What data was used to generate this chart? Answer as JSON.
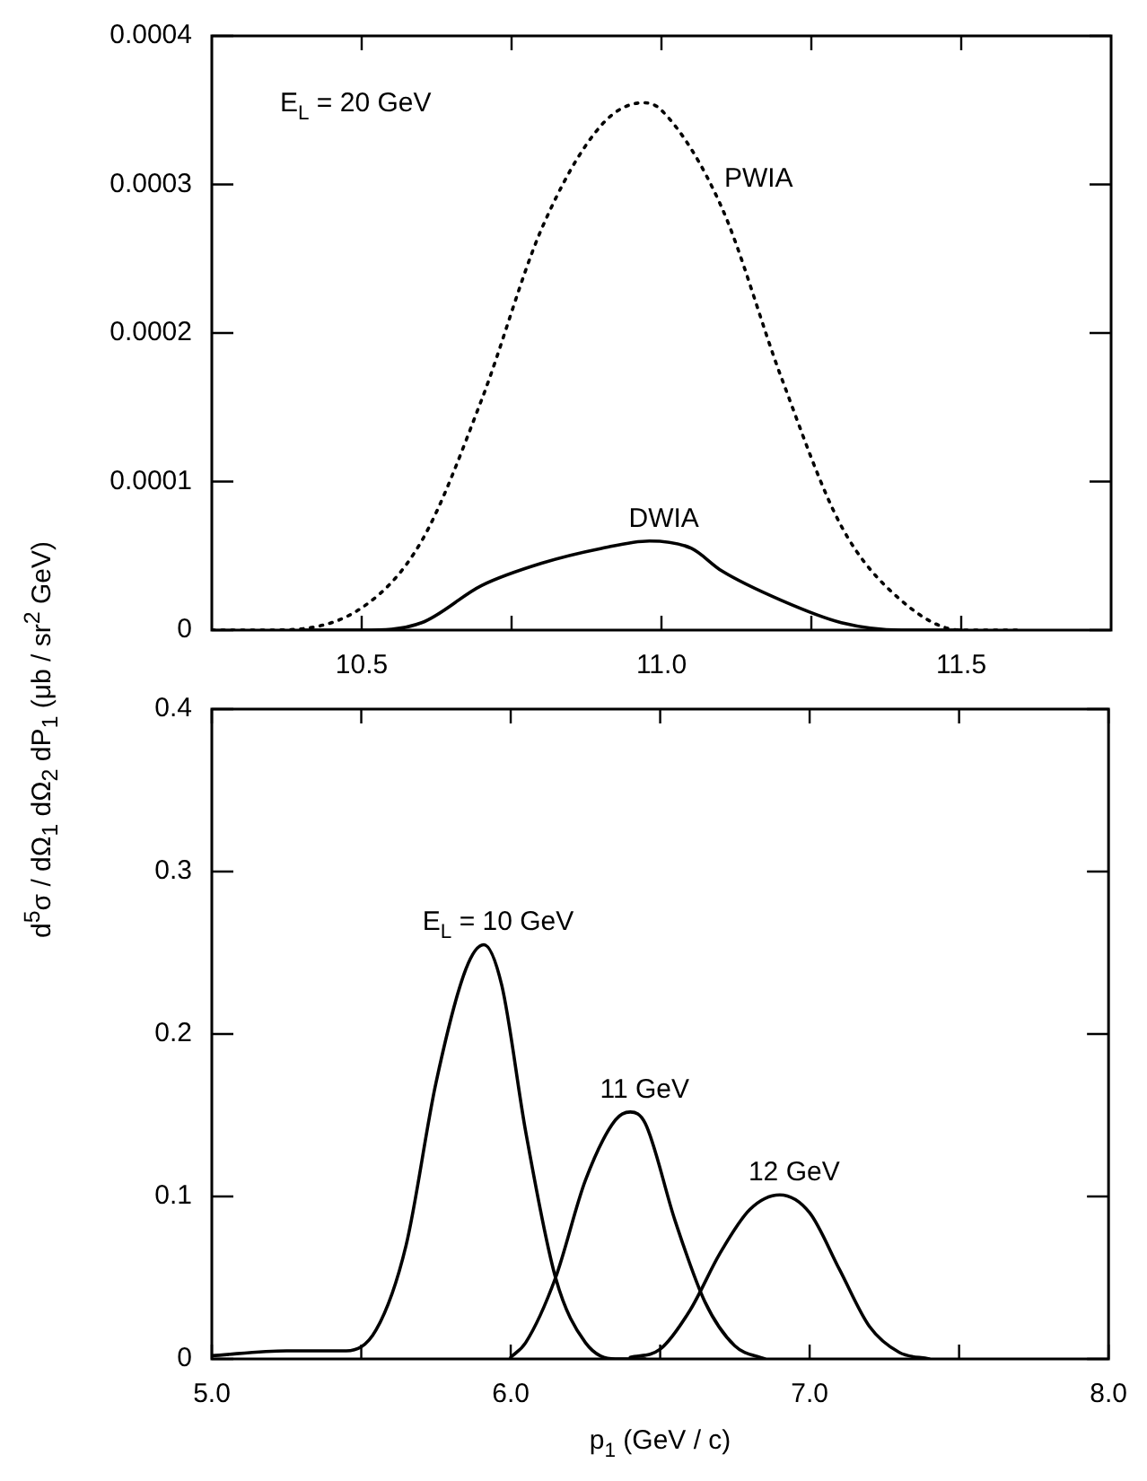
{
  "chart_data": [
    {
      "type": "line",
      "ylabel": "d$^{5}$σ / dΩ$_{1}$ dΩ$_{2}$ dP$_{1}$   (μb / sr$^{2}$ GeV)",
      "annotations": [
        "E$_{L}$ = 20 GeV"
      ],
      "xlim": [
        10.25,
        11.75
      ],
      "xticks": [
        {
          "value": 10.5,
          "label": "10.5"
        },
        {
          "value": 10.75,
          "label": null
        },
        {
          "value": 11,
          "label": "11.0"
        },
        {
          "value": 11.25,
          "label": null
        },
        {
          "value": 11.5,
          "label": "11.5"
        }
      ],
      "ylim": [
        0,
        0.0004
      ],
      "yticks": [
        0,
        0.0001,
        0.0002,
        0.0003,
        0.0004
      ],
      "marker": "none",
      "series": [
        {
          "name": "PWIA",
          "color": "#000000",
          "line_style": "dotted",
          "x": [
            10.25,
            10.35,
            10.5,
            10.6,
            10.7,
            10.8,
            10.9,
            10.97,
            11.0,
            11.1,
            11.2,
            11.3,
            11.4,
            11.5,
            11.6
          ],
          "values": [
            0,
            0,
            1.5e-05,
            6e-05,
            0.000155,
            0.00027,
            0.00034,
            0.000355,
            0.00035,
            0.000285,
            0.00017,
            7e-05,
            2e-05,
            0,
            0
          ]
        },
        {
          "name": "DWIA",
          "color": "#000000",
          "line_style": "solid",
          "x": [
            10.4,
            10.5,
            10.6,
            10.7,
            10.8,
            10.9,
            10.98,
            11.05,
            11.1,
            11.2,
            11.3,
            11.4,
            11.5
          ],
          "values": [
            0,
            0,
            5e-06,
            3e-05,
            4.5e-05,
            5.5e-05,
            6e-05,
            5.5e-05,
            4e-05,
            2e-05,
            5e-06,
            0,
            0
          ]
        }
      ]
    },
    {
      "type": "line",
      "xlabel": "p$_{1}$ (GeV / c)",
      "xlim": [
        5,
        8
      ],
      "xticks": [
        {
          "value": 5,
          "label": "5.0"
        },
        {
          "value": 5.5,
          "label": null
        },
        {
          "value": 6,
          "label": "6.0"
        },
        {
          "value": 6.5,
          "label": null
        },
        {
          "value": 7,
          "label": "7.0"
        },
        {
          "value": 7.5,
          "label": null
        },
        {
          "value": 8,
          "label": "8.0"
        }
      ],
      "ylim": [
        0,
        0.4
      ],
      "yticks": [
        0,
        0.1,
        0.2,
        0.3,
        0.4
      ],
      "marker": "none",
      "series": [
        {
          "name": "E$_{L}$ = 10 GeV",
          "color": "#000000",
          "line_style": "solid",
          "x": [
            5.0,
            5.25,
            5.45,
            5.55,
            5.65,
            5.75,
            5.85,
            5.91,
            5.97,
            6.05,
            6.15,
            6.25,
            6.35,
            6.45
          ],
          "values": [
            0.002,
            0.005,
            0.005,
            0.018,
            0.07,
            0.17,
            0.24,
            0.255,
            0.23,
            0.14,
            0.05,
            0.01,
            0,
            0
          ]
        },
        {
          "name": "11 GeV",
          "color": "#000000",
          "line_style": "solid",
          "x": [
            6.0,
            6.05,
            6.15,
            6.25,
            6.35,
            6.4,
            6.45,
            6.55,
            6.65,
            6.75,
            6.85
          ],
          "values": [
            0.001,
            0.01,
            0.05,
            0.11,
            0.147,
            0.152,
            0.145,
            0.085,
            0.035,
            0.008,
            0
          ]
        },
        {
          "name": "12 GeV",
          "color": "#000000",
          "line_style": "solid",
          "x": [
            6.4,
            6.5,
            6.6,
            6.7,
            6.8,
            6.9,
            7.0,
            7.1,
            7.2,
            7.3,
            7.4
          ],
          "values": [
            0.001,
            0.006,
            0.03,
            0.065,
            0.092,
            0.101,
            0.09,
            0.055,
            0.02,
            0.004,
            0
          ]
        }
      ]
    }
  ]
}
